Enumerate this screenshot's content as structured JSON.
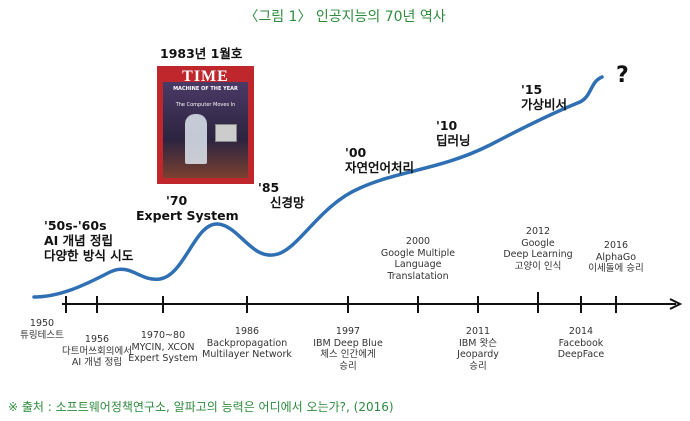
{
  "title": "〈그림 1〉 인공지능의 70년 역사",
  "cover": {
    "caption": "1983년 1월호",
    "masthead": "TIME",
    "headline": "The Computer Moves In",
    "label": "MACHINE OF THE YEAR"
  },
  "eras": [
    {
      "line1": "'50s-'60s",
      "line2": "AI 개념 정립",
      "line3": "다양한 방식 시도"
    },
    {
      "line1": "'70",
      "line2": "Expert System"
    },
    {
      "line1": "'85",
      "line2": "신경망"
    },
    {
      "line1": "'00",
      "line2": "자연언어처리"
    },
    {
      "line1": "'10",
      "line2": "딥러닝"
    },
    {
      "line1": "'15",
      "line2": "가상비서"
    },
    {
      "line1": "?"
    }
  ],
  "events": [
    {
      "year": "1950",
      "l1": "튜링테스트"
    },
    {
      "year": "1956",
      "l1": "다트머쓰회의에서",
      "l2": "AI 개념 정립"
    },
    {
      "year": "1970~80",
      "l1": "MYCIN, XCON",
      "l2": "Expert System"
    },
    {
      "year": "1986",
      "l1": "Backpropagation",
      "l2": "Multilayer Network"
    },
    {
      "year": "1997",
      "l1": "IBM Deep Blue",
      "l2": "체스 인간에게",
      "l3": "승리"
    },
    {
      "year": "2000",
      "l1": "Google Multiple",
      "l2": "Language",
      "l3": "Translatation"
    },
    {
      "year": "2011",
      "l1": "IBM 왓슨",
      "l2": "Jeopardy",
      "l3": "승리"
    },
    {
      "year": "2012",
      "l1": "Google",
      "l2": "Deep Learning",
      "l3": "고양이 인식"
    },
    {
      "year": "2014",
      "l1": "Facebook",
      "l2": "DeepFace"
    },
    {
      "year": "2016",
      "l1": "AlphaGo",
      "l2": "이세돌에 승리"
    }
  ],
  "source": "※ 출처 : 소프트웨어정책연구소, 알파고의 능력은 어디에서 오는가?, (2016)",
  "colors": {
    "title": "#2e8b3e",
    "curve": "#2f6fb4",
    "axis": "#111111",
    "cover": "#c0272d"
  }
}
